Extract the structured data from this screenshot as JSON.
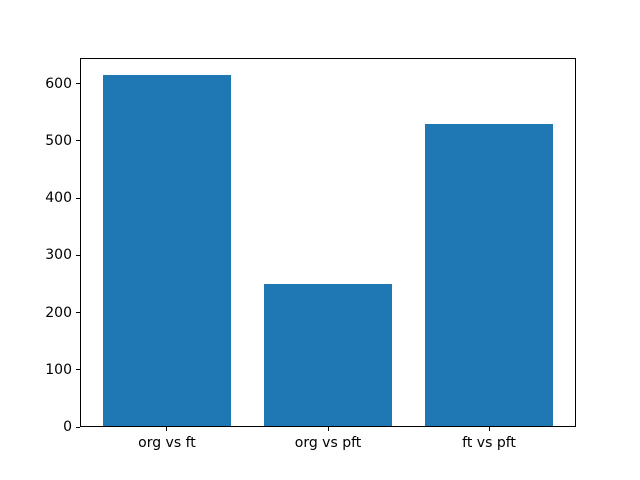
{
  "chart_data": {
    "type": "bar",
    "title": "",
    "xlabel": "",
    "ylabel": "",
    "categories": [
      "org vs ft",
      "org vs pft",
      "ft vs pft"
    ],
    "values": [
      614,
      249,
      528
    ],
    "bar_color": "#1f77b4",
    "bar_width_fraction": 0.8,
    "yticks": [
      0,
      100,
      200,
      300,
      400,
      500,
      600
    ],
    "ylim": [
      0,
      645
    ],
    "xlim": [
      -0.54,
      2.54
    ],
    "grid": false,
    "legend": false,
    "background_color": "#ffffff",
    "axis_color": "#000000"
  }
}
